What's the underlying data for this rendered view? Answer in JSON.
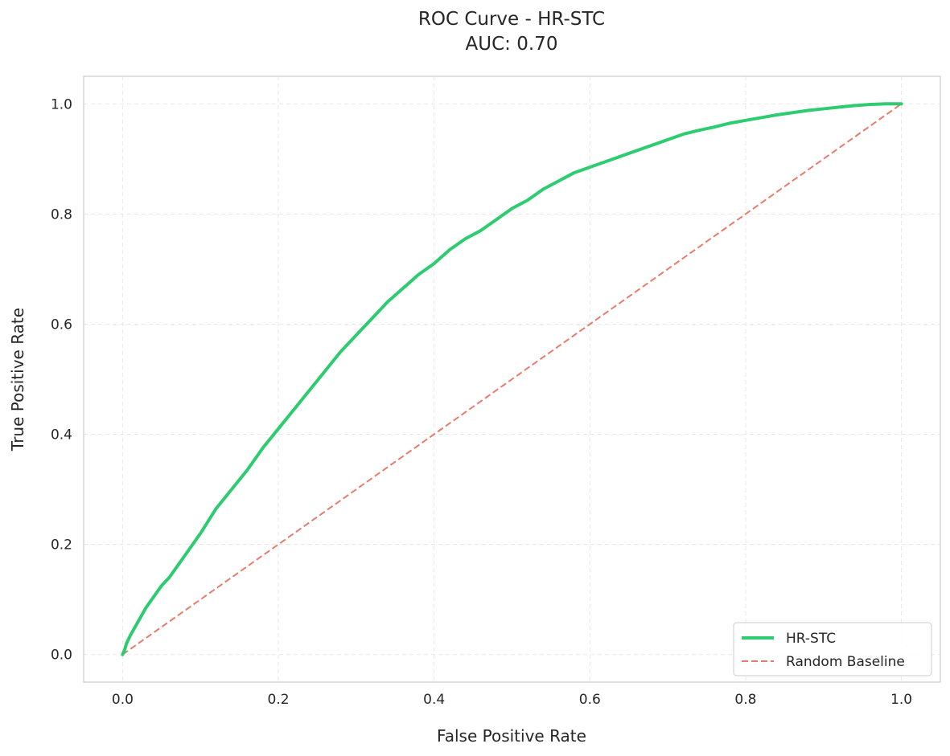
{
  "colors": {
    "roc_line": "#2ecc71",
    "baseline": "#e87c6c",
    "grid": "#e8e8e8",
    "axes_border": "#cccccc",
    "text": "#262626"
  },
  "chart_data": {
    "type": "line",
    "title": "ROC Curve - HR-STC",
    "subtitle": "AUC: 0.70",
    "xlabel": "False Positive Rate",
    "ylabel": "True Positive Rate",
    "xlim": [
      -0.05,
      1.05
    ],
    "ylim": [
      -0.05,
      1.05
    ],
    "xticks": [
      0.0,
      0.2,
      0.4,
      0.6,
      0.8,
      1.0
    ],
    "yticks": [
      0.0,
      0.2,
      0.4,
      0.6,
      0.8,
      1.0
    ],
    "xtick_labels": [
      "0.0",
      "0.2",
      "0.4",
      "0.6",
      "0.8",
      "1.0"
    ],
    "ytick_labels": [
      "0.0",
      "0.2",
      "0.4",
      "0.6",
      "0.8",
      "1.0"
    ],
    "grid": true,
    "legend_position": "bottom-right",
    "series": [
      {
        "name": "HR-STC",
        "style": "solid",
        "x": [
          0.0,
          0.003,
          0.005,
          0.01,
          0.02,
          0.03,
          0.04,
          0.05,
          0.06,
          0.07,
          0.08,
          0.09,
          0.1,
          0.12,
          0.14,
          0.16,
          0.18,
          0.2,
          0.22,
          0.24,
          0.26,
          0.28,
          0.3,
          0.32,
          0.34,
          0.36,
          0.38,
          0.4,
          0.42,
          0.44,
          0.46,
          0.48,
          0.5,
          0.52,
          0.54,
          0.56,
          0.58,
          0.6,
          0.62,
          0.64,
          0.66,
          0.68,
          0.7,
          0.72,
          0.74,
          0.76,
          0.78,
          0.8,
          0.82,
          0.84,
          0.86,
          0.88,
          0.9,
          0.92,
          0.94,
          0.96,
          0.98,
          1.0
        ],
        "y": [
          0.0,
          0.01,
          0.02,
          0.035,
          0.06,
          0.085,
          0.105,
          0.125,
          0.14,
          0.16,
          0.18,
          0.2,
          0.22,
          0.265,
          0.3,
          0.335,
          0.375,
          0.41,
          0.445,
          0.48,
          0.515,
          0.55,
          0.58,
          0.61,
          0.64,
          0.665,
          0.69,
          0.71,
          0.735,
          0.755,
          0.77,
          0.79,
          0.81,
          0.825,
          0.845,
          0.86,
          0.875,
          0.885,
          0.895,
          0.905,
          0.915,
          0.925,
          0.935,
          0.945,
          0.952,
          0.958,
          0.965,
          0.97,
          0.975,
          0.98,
          0.984,
          0.988,
          0.991,
          0.994,
          0.997,
          0.999,
          1.0,
          1.0
        ]
      },
      {
        "name": "Random Baseline",
        "style": "dashed",
        "x": [
          0.0,
          1.0
        ],
        "y": [
          0.0,
          1.0
        ]
      }
    ]
  }
}
